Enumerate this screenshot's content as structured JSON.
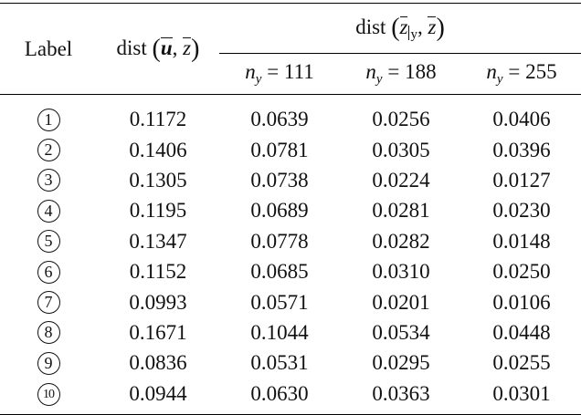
{
  "header": {
    "label": "Label",
    "dist_label": "dist",
    "dist_u_u": "u",
    "dist_u_z": "z",
    "group": {
      "dist_label": "dist",
      "z_sub_cond": "y",
      "z": "z"
    },
    "n_var": "n",
    "n_sub": "y",
    "n_values": [
      "111",
      "188",
      "255"
    ]
  },
  "rows": [
    {
      "label": "1",
      "u": "0.1172",
      "n111": "0.0639",
      "n188": "0.0256",
      "n255": "0.0406"
    },
    {
      "label": "2",
      "u": "0.1406",
      "n111": "0.0781",
      "n188": "0.0305",
      "n255": "0.0396"
    },
    {
      "label": "3",
      "u": "0.1305",
      "n111": "0.0738",
      "n188": "0.0224",
      "n255": "0.0127"
    },
    {
      "label": "4",
      "u": "0.1195",
      "n111": "0.0689",
      "n188": "0.0281",
      "n255": "0.0230"
    },
    {
      "label": "5",
      "u": "0.1347",
      "n111": "0.0778",
      "n188": "0.0282",
      "n255": "0.0148"
    },
    {
      "label": "6",
      "u": "0.1152",
      "n111": "0.0685",
      "n188": "0.0310",
      "n255": "0.0250"
    },
    {
      "label": "7",
      "u": "0.0993",
      "n111": "0.0571",
      "n188": "0.0201",
      "n255": "0.0106"
    },
    {
      "label": "8",
      "u": "0.1671",
      "n111": "0.1044",
      "n188": "0.0534",
      "n255": "0.0448"
    },
    {
      "label": "9",
      "u": "0.0836",
      "n111": "0.0531",
      "n188": "0.0295",
      "n255": "0.0255"
    },
    {
      "label": "10",
      "u": "0.0944",
      "n111": "0.0630",
      "n188": "0.0363",
      "n255": "0.0301"
    }
  ]
}
